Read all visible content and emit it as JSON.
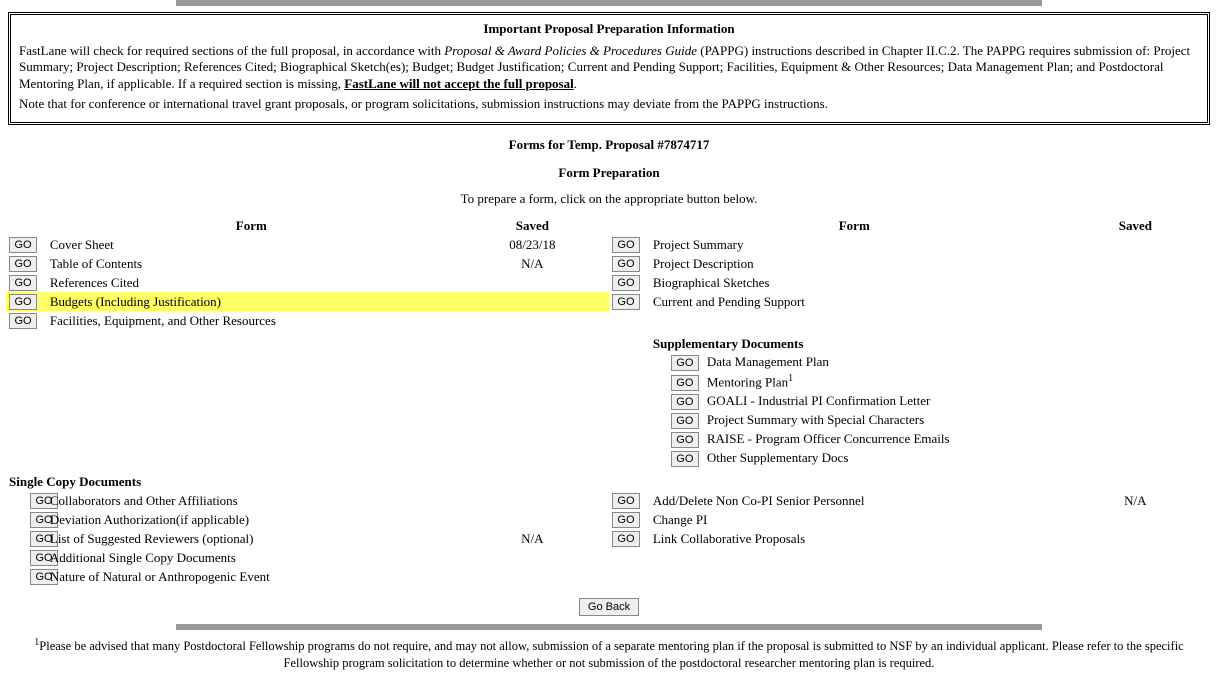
{
  "info": {
    "title": "Important Proposal Preparation Information",
    "p1_a": "FastLane will check for required sections of the full proposal, in accordance with ",
    "p1_i": "Proposal & Award Policies & Procedures Guide",
    "p1_b": " (PAPPG) instructions described in Chapter II.C.2. The PAPPG requires submission of: Project Summary; Project Description; References Cited; Biographical Sketch(es); Budget; Budget Justification; Current and Pending Support; Facilities, Equipment & Other Resources; Data Management Plan; and Postdoctoral Mentoring Plan, if applicable. If a required section is missing, ",
    "p1_u": "FastLane will not accept the full proposal",
    "p1_c": ".",
    "p2": "Note that for conference or international travel grant proposals, or program solicitations, submission instructions may deviate from the PAPPG instructions."
  },
  "page": {
    "forms_title": "Forms for Temp. Proposal #7874717",
    "form_prep": "Form Preparation",
    "instruction": "To prepare a form, click on the appropriate button below."
  },
  "labels": {
    "go": "GO",
    "go_back": "Go Back",
    "form_hdr": "Form",
    "saved_hdr": "Saved",
    "supp_hdr": "Supplementary Documents",
    "single_copy_hdr": "Single Copy Documents"
  },
  "left": [
    {
      "label": "Cover Sheet",
      "saved": "08/23/18"
    },
    {
      "label": "Table of Contents",
      "saved": "N/A"
    },
    {
      "label": "References Cited",
      "saved": ""
    },
    {
      "label": "Budgets (Including Justification)",
      "saved": "",
      "highlight": true
    },
    {
      "label": "Facilities, Equipment, and Other Resources",
      "saved": ""
    }
  ],
  "right": [
    {
      "label": "Project Summary",
      "saved": ""
    },
    {
      "label": "Project Description",
      "saved": ""
    },
    {
      "label": "Biographical Sketches",
      "saved": ""
    },
    {
      "label": "Current and Pending Support",
      "saved": ""
    }
  ],
  "supp": [
    {
      "label": "Data Management Plan"
    },
    {
      "label_a": "Mentoring Plan",
      "sup": "1"
    },
    {
      "label": "GOALI - Industrial PI Confirmation Letter"
    },
    {
      "label": "Project Summary with Special Characters"
    },
    {
      "label": "RAISE - Program Officer Concurrence Emails"
    },
    {
      "label": "Other Supplementary Docs"
    }
  ],
  "single_left": [
    {
      "label": "Collaborators and Other Affiliations",
      "saved": ""
    },
    {
      "label": "Deviation Authorization(if applicable)",
      "saved": ""
    },
    {
      "label": "List of Suggested Reviewers (optional)",
      "saved": "N/A"
    },
    {
      "label": "Additional Single Copy Documents",
      "saved": ""
    },
    {
      "label": "Nature of Natural or Anthropogenic Event",
      "saved": ""
    }
  ],
  "single_right": [
    {
      "label": "Add/Delete Non Co-PI Senior Personnel",
      "saved": "N/A"
    },
    {
      "label": "Change PI",
      "saved": ""
    },
    {
      "label": "Link Collaborative Proposals",
      "saved": ""
    }
  ],
  "footnote": {
    "sup": "1",
    "text": "Please be advised that many Postdoctoral Fellowship programs do not require, and may not allow, submission of a separate mentoring plan if the proposal is submitted to NSF by an individual applicant. Please refer to the specific Fellowship program solicitation to determine whether or not submission of the postdoctoral researcher mentoring plan is required."
  }
}
